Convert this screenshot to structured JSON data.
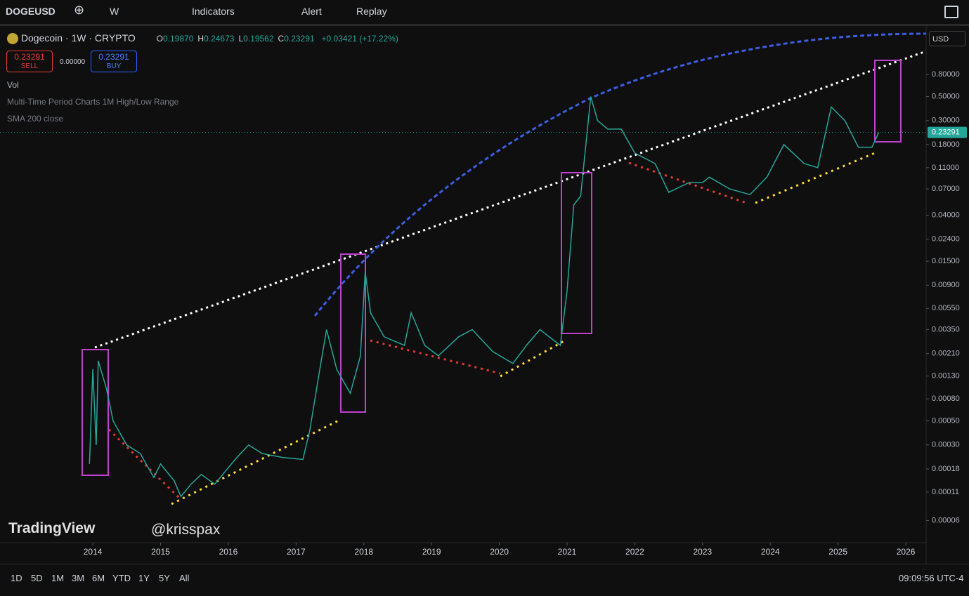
{
  "toolbar": {
    "symbol": "DOGEUSD",
    "interval": "W",
    "indicators": "Indicators",
    "alert": "Alert",
    "replay": "Replay"
  },
  "legend": {
    "title": "Dogecoin · 1W · CRYPTO",
    "ohlc": [
      {
        "key": "O",
        "val": "0.19870"
      },
      {
        "key": "H",
        "val": "0.24673"
      },
      {
        "key": "L",
        "val": "0.19562"
      },
      {
        "key": "C",
        "val": "0.23291"
      }
    ],
    "change": "+0.03421 (+17.22%)"
  },
  "trade": {
    "sell_label": "SELL",
    "buy_label": "BUY",
    "spread": "0.00000"
  },
  "studies": [
    "Vol",
    "Multi-Time Period Charts 1M High/Low Range",
    "SMA 200 close"
  ],
  "currency": "USD",
  "watermark": {
    "brand": "TradingView",
    "author": "@krisspax"
  },
  "chart_data": {
    "type": "line",
    "log_scale": true,
    "grid": false,
    "color": "#26a69a",
    "last_price": 0.23291,
    "x": [
      2013.95,
      2014.0,
      2014.05,
      2014.08,
      2014.2,
      2014.3,
      2014.5,
      2014.7,
      2014.9,
      2015.0,
      2015.2,
      2015.3,
      2015.45,
      2015.6,
      2015.8,
      2016.1,
      2016.3,
      2016.5,
      2016.8,
      2017.1,
      2017.2,
      2017.35,
      2017.45,
      2017.6,
      2017.8,
      2017.95,
      2018.02,
      2018.1,
      2018.3,
      2018.6,
      2018.7,
      2018.9,
      2019.1,
      2019.4,
      2019.6,
      2019.9,
      2020.2,
      2020.4,
      2020.6,
      2020.9,
      2021.0,
      2021.1,
      2021.2,
      2021.35,
      2021.45,
      2021.6,
      2021.8,
      2022.0,
      2022.3,
      2022.5,
      2022.8,
      2023.0,
      2023.1,
      2023.4,
      2023.7,
      2023.95,
      2024.2,
      2024.5,
      2024.7,
      2024.9,
      2025.1,
      2025.3,
      2025.5,
      2025.6
    ],
    "values": [
      0.0002,
      0.0015,
      0.0003,
      0.0018,
      0.001,
      0.0005,
      0.0003,
      0.00025,
      0.00015,
      0.0002,
      0.00014,
      0.0001,
      0.00013,
      0.00016,
      0.00013,
      0.00022,
      0.0003,
      0.00025,
      0.00023,
      0.00022,
      0.0004,
      0.0015,
      0.0035,
      0.0015,
      0.0009,
      0.002,
      0.012,
      0.005,
      0.003,
      0.0025,
      0.005,
      0.0025,
      0.002,
      0.003,
      0.0035,
      0.0022,
      0.0017,
      0.0025,
      0.0035,
      0.0025,
      0.008,
      0.05,
      0.06,
      0.5,
      0.3,
      0.25,
      0.25,
      0.15,
      0.12,
      0.065,
      0.08,
      0.08,
      0.09,
      0.07,
      0.062,
      0.09,
      0.18,
      0.12,
      0.11,
      0.4,
      0.3,
      0.17,
      0.17,
      0.23291
    ],
    "xlim": [
      2012.63,
      2026.3
    ],
    "xticks": [
      2014,
      2015,
      2016,
      2017,
      2018,
      2019,
      2020,
      2021,
      2022,
      2023,
      2024,
      2025,
      2026
    ],
    "ylim": [
      3.8e-05,
      2.15
    ],
    "yticks": [
      {
        "value": 0.8,
        "label": "0.80000"
      },
      {
        "value": 0.5,
        "label": "0.50000"
      },
      {
        "value": 0.3,
        "label": "0.30000"
      },
      {
        "value": 0.18,
        "label": "0.18000"
      },
      {
        "value": 0.11,
        "label": "0.11000"
      },
      {
        "value": 0.07,
        "label": "0.07000"
      },
      {
        "value": 0.04,
        "label": "0.04000"
      },
      {
        "value": 0.024,
        "label": "0.02400"
      },
      {
        "value": 0.015,
        "label": "0.01500"
      },
      {
        "value": 0.009,
        "label": "0.00900"
      },
      {
        "value": 0.0055,
        "label": "0.00550"
      },
      {
        "value": 0.0035,
        "label": "0.00350"
      },
      {
        "value": 0.0021,
        "label": "0.00210"
      },
      {
        "value": 0.0013,
        "label": "0.00130"
      },
      {
        "value": 0.0008,
        "label": "0.00080"
      },
      {
        "value": 0.0005,
        "label": "0.00050"
      },
      {
        "value": 0.0003,
        "label": "0.00030"
      },
      {
        "value": 0.00018,
        "label": "0.00018"
      },
      {
        "value": 0.00011,
        "label": "0.00011"
      },
      {
        "value": 6e-05,
        "label": "0.00006"
      }
    ]
  },
  "timeframes": [
    "1D",
    "5D",
    "1M",
    "3M",
    "6M",
    "YTD",
    "1Y",
    "5Y",
    "All"
  ],
  "clock": "09:09:56 UTC-4"
}
